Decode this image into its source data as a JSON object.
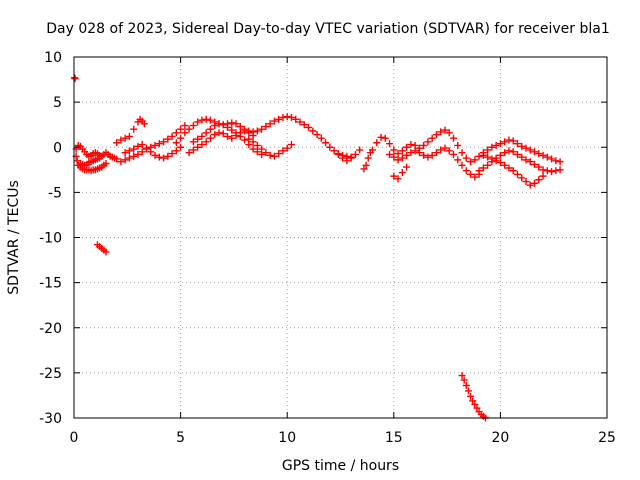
{
  "chart_data": {
    "type": "scatter",
    "title": "Day 028 of 2023, Sidereal Day-to-day VTEC variation (SDTVAR) for receiver bla1",
    "xlabel": "GPS time / hours",
    "ylabel": "SDTVAR / TECUs",
    "xlim": [
      0,
      25
    ],
    "ylim": [
      -30,
      10
    ],
    "x_ticks": [
      0,
      5,
      10,
      15,
      20,
      25
    ],
    "x_tick_labels": [
      "0",
      "5",
      "10",
      "15",
      "20",
      "25"
    ],
    "y_ticks": [
      10,
      5,
      0,
      -5,
      -10,
      -15,
      -20,
      -25,
      -30
    ],
    "y_tick_labels": [
      "10",
      "5",
      "0",
      "-5",
      "-10",
      "-15",
      "-20",
      "-25",
      "-30"
    ],
    "grid": true,
    "grid_style": "dotted",
    "marker": "plus",
    "marker_color": "#ff0000",
    "series": [
      {
        "name": "SDTVAR",
        "x": [
          0.02,
          0.05,
          0.1,
          0.15,
          0.2,
          0.3,
          0.4,
          0.5,
          0.6,
          0.7,
          0.8,
          0.9,
          1.0,
          1.1,
          1.2,
          1.3,
          1.4,
          1.5,
          0.1,
          0.2,
          0.3,
          0.4,
          0.5,
          0.6,
          0.7,
          0.8,
          0.9,
          1.0,
          1.1,
          1.2,
          1.3,
          1.4,
          1.5,
          1.6,
          1.7,
          1.8,
          1.9,
          2.0,
          0.3,
          0.4,
          0.5,
          0.6,
          0.7,
          0.8,
          0.9,
          1.0,
          1.1,
          1.2,
          1.1,
          1.2,
          1.3,
          1.4,
          1.5,
          2.0,
          2.2,
          2.4,
          2.6,
          2.8,
          3.0,
          3.1,
          3.2,
          3.3,
          2.2,
          2.4,
          2.6,
          2.8,
          3.0,
          3.2,
          3.4,
          3.6,
          3.8,
          4.0,
          4.2,
          4.4,
          4.6,
          4.8,
          5.0,
          5.2,
          2.4,
          2.6,
          2.8,
          3.0,
          3.2,
          3.4,
          3.6,
          3.8,
          4.0,
          4.2,
          4.4,
          4.6,
          4.8,
          5.0,
          4.8,
          5.0,
          5.2,
          5.4,
          5.6,
          5.8,
          6.0,
          6.2,
          6.4,
          6.6,
          6.8,
          7.0,
          7.2,
          7.4,
          7.6,
          7.8,
          8.0,
          8.2,
          8.4,
          8.6,
          8.8,
          9.0,
          9.2,
          9.4,
          9.6,
          9.8,
          10.0,
          10.2,
          10.4,
          10.6,
          10.8,
          11.0,
          11.2,
          11.4,
          11.6,
          11.8,
          12.0,
          12.2,
          12.4,
          12.6,
          12.8,
          13.0,
          5.4,
          5.6,
          5.8,
          6.0,
          6.2,
          6.4,
          6.6,
          6.8,
          7.0,
          7.2,
          7.4,
          7.6,
          7.8,
          8.0,
          8.2,
          8.4,
          5.6,
          5.8,
          6.0,
          6.2,
          6.4,
          6.6,
          6.8,
          7.0,
          7.2,
          7.4,
          7.6,
          7.8,
          8.0,
          8.2,
          8.4,
          8.6,
          8.8,
          8.2,
          8.4,
          8.6,
          8.8,
          9.0,
          9.2,
          9.4,
          9.6,
          9.8,
          10.0,
          10.2,
          12.4,
          12.6,
          12.8,
          13.0,
          13.2,
          13.4,
          13.6,
          13.7,
          13.8,
          13.9,
          14.0,
          14.2,
          14.4,
          14.6,
          14.8,
          15.0,
          15.2,
          15.4,
          15.6,
          15.8,
          16.0,
          16.2,
          16.4,
          16.6,
          16.8,
          17.0,
          17.2,
          17.4,
          17.6,
          17.8,
          18.0,
          18.2,
          18.4,
          18.6,
          18.8,
          19.0,
          19.2,
          19.4,
          19.6,
          19.8,
          20.0,
          20.2,
          20.4,
          20.6,
          20.8,
          21.0,
          21.2,
          21.4,
          21.6,
          21.8,
          22.0,
          22.2,
          22.4,
          22.6,
          22.8,
          14.8,
          15.0,
          15.2,
          15.4,
          15.6,
          15.8,
          16.0,
          16.2,
          16.4,
          16.6,
          16.8,
          17.0,
          17.2,
          17.4,
          17.6,
          17.8,
          18.0,
          18.2,
          18.4,
          18.6,
          18.8,
          19.0,
          15.0,
          15.2,
          15.4,
          15.6,
          19.0,
          19.2,
          19.4,
          19.6,
          19.8,
          20.0,
          20.2,
          20.4,
          20.6,
          20.8,
          21.0,
          21.2,
          21.4,
          21.6,
          21.8,
          22.0,
          22.2,
          22.4,
          22.6,
          22.8,
          19.2,
          19.4,
          19.6,
          19.8,
          20.0,
          20.2,
          20.4,
          20.6,
          20.8,
          21.0,
          21.2,
          21.4,
          21.6,
          21.8,
          22.0,
          18.2,
          18.3,
          18.4,
          18.5,
          18.6,
          18.7,
          18.8,
          18.9,
          19.0,
          19.1,
          19.2,
          19.3
        ],
        "y": [
          7.7,
          7.6,
          -1.0,
          -1.5,
          -2.0,
          -2.2,
          -2.4,
          -2.5,
          -2.5,
          -2.5,
          -2.6,
          -2.5,
          -2.5,
          -2.4,
          -2.3,
          -2.2,
          -2.0,
          -1.8,
          -0.2,
          0.2,
          0.1,
          -0.2,
          -0.5,
          -0.8,
          -1.0,
          -0.9,
          -0.7,
          -0.6,
          -0.7,
          -0.9,
          -1.0,
          -0.8,
          -0.6,
          -0.8,
          -1.0,
          -1.1,
          -1.2,
          -1.3,
          -1.8,
          -1.9,
          -2.0,
          -1.9,
          -1.7,
          -1.6,
          -1.5,
          -1.4,
          -1.3,
          -1.2,
          -10.8,
          -11.0,
          -11.2,
          -11.4,
          -11.6,
          0.5,
          0.8,
          1.0,
          1.2,
          2.0,
          2.8,
          3.1,
          2.9,
          2.6,
          -1.6,
          -1.4,
          -1.2,
          -1.0,
          -0.8,
          -0.5,
          -0.2,
          0.0,
          0.2,
          0.4,
          0.6,
          0.9,
          1.2,
          1.6,
          2.0,
          2.4,
          -0.6,
          -0.4,
          -0.2,
          0.1,
          0.3,
          -0.1,
          -0.5,
          -0.9,
          -1.1,
          -1.2,
          -1.0,
          -0.7,
          -0.4,
          0.0,
          0.5,
          1.0,
          1.6,
          2.0,
          2.4,
          2.8,
          3.0,
          3.1,
          3.0,
          2.8,
          2.6,
          2.5,
          2.6,
          2.7,
          2.6,
          2.3,
          2.0,
          1.8,
          1.7,
          1.8,
          2.0,
          2.3,
          2.6,
          2.9,
          3.1,
          3.3,
          3.4,
          3.3,
          3.1,
          2.8,
          2.5,
          2.2,
          1.8,
          1.4,
          1.0,
          0.5,
          0.0,
          -0.4,
          -0.7,
          -0.9,
          -1.0,
          -1.1,
          -0.6,
          -0.3,
          0.0,
          0.3,
          0.6,
          1.0,
          1.4,
          1.6,
          1.5,
          1.2,
          1.0,
          1.3,
          1.6,
          1.8,
          1.6,
          1.3,
          0.6,
          0.9,
          1.2,
          1.6,
          2.0,
          2.4,
          2.6,
          2.5,
          2.2,
          1.9,
          1.6,
          1.2,
          0.8,
          0.3,
          -0.2,
          -0.5,
          -0.8,
          0.9,
          0.6,
          0.2,
          -0.2,
          -0.6,
          -0.9,
          -1.0,
          -0.7,
          -0.4,
          -0.1,
          0.3,
          -0.8,
          -1.2,
          -1.5,
          -1.2,
          -0.8,
          -0.3,
          -2.4,
          -2.0,
          -1.2,
          -0.6,
          -0.3,
          0.5,
          1.1,
          1.0,
          0.4,
          -0.3,
          -0.7,
          -0.4,
          0.0,
          0.3,
          0.2,
          -0.1,
          0.2,
          0.6,
          1.0,
          1.4,
          1.7,
          1.9,
          1.6,
          1.0,
          0.2,
          -0.6,
          -1.2,
          -1.6,
          -1.4,
          -1.0,
          -0.6,
          -0.3,
          0.0,
          0.2,
          0.4,
          0.6,
          0.8,
          0.7,
          0.4,
          0.1,
          -0.1,
          -0.3,
          -0.5,
          -0.7,
          -0.9,
          -1.1,
          -1.3,
          -1.5,
          -1.6,
          -0.8,
          -1.1,
          -1.4,
          -1.2,
          -0.9,
          -0.6,
          -0.4,
          -0.6,
          -0.9,
          -1.1,
          -0.9,
          -0.6,
          -0.3,
          -0.1,
          -0.4,
          -0.8,
          -1.4,
          -2.0,
          -2.6,
          -3.0,
          -3.3,
          -3.0,
          -3.2,
          -3.5,
          -2.8,
          -2.2,
          -2.6,
          -2.3,
          -2.0,
          -1.6,
          -1.2,
          -0.9,
          -0.6,
          -0.4,
          -0.5,
          -0.8,
          -1.1,
          -1.4,
          -1.6,
          -1.9,
          -2.2,
          -2.5,
          -2.6,
          -2.7,
          -2.6,
          -2.5,
          -0.9,
          -1.1,
          -1.3,
          -1.5,
          -1.7,
          -2.0,
          -2.3,
          -2.6,
          -3.0,
          -3.4,
          -3.8,
          -4.2,
          -4.0,
          -3.6,
          -3.2,
          -25.3,
          -25.8,
          -26.4,
          -27.0,
          -27.6,
          -28.1,
          -28.5,
          -28.9,
          -29.3,
          -29.6,
          -29.8,
          -30.0
        ]
      }
    ]
  }
}
